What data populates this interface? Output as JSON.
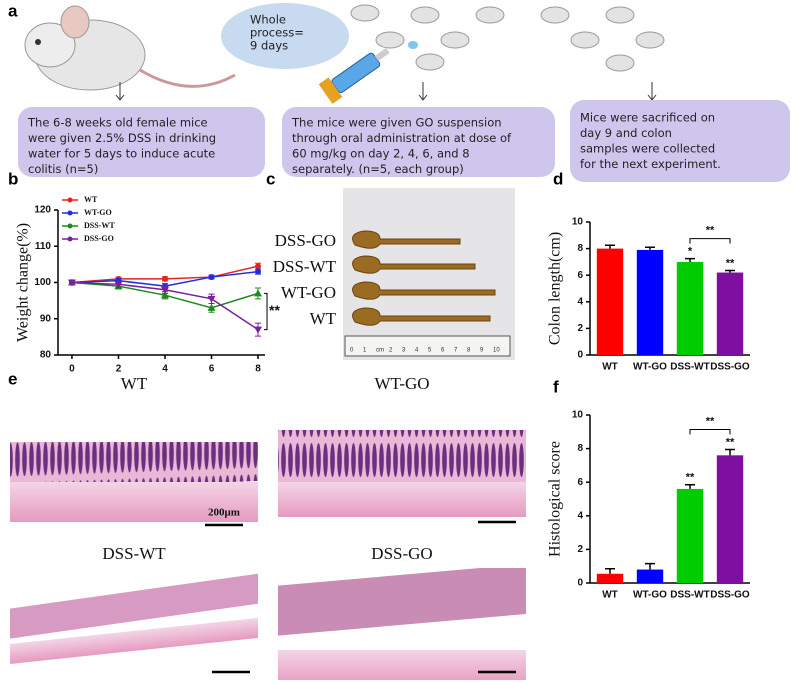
{
  "panel_letters": [
    "a",
    "b",
    "c",
    "d",
    "e",
    "f"
  ],
  "schematic": {
    "bubble": [
      "Whole",
      "process=",
      "9 days"
    ],
    "boxes": [
      [
        "The 6-8 weeks old female mice",
        "were given 2.5% DSS in drinking",
        "water for 5 days to induce acute",
        "colitis (n=5)"
      ],
      [
        "The mice were given GO suspension",
        "through oral administration at dose of",
        "60 mg/kg on day 2, 4, 6, and 8",
        "separately. (n=5, each group)"
      ],
      [
        "Mice were sacrificed on",
        "day 9 and colon",
        "samples were collected",
        "for the next experiment."
      ]
    ]
  },
  "photo": {
    "labels": [
      "DSS-GO",
      "DSS-WT",
      "WT-GO",
      "WT"
    ],
    "ruler": [
      "0",
      "1",
      "cm",
      "2",
      "3",
      "4",
      "5",
      "6",
      "7",
      "8",
      "9",
      "10"
    ]
  },
  "histology": {
    "labels": [
      "WT",
      "WT-GO",
      "DSS-WT",
      "DSS-GO"
    ],
    "scale_bar": "200μm"
  },
  "chart_data": [
    {
      "type": "line",
      "y_label": "Weight change(%)",
      "x": [
        0,
        2,
        4,
        6,
        8
      ],
      "xlim": [
        -0.6,
        8.3
      ],
      "xticks": [
        0,
        2,
        4,
        6,
        8
      ],
      "ylim": [
        80,
        120
      ],
      "yticks": [
        80,
        90,
        100,
        110,
        120
      ],
      "annotation": "**",
      "series": [
        {
          "name": "WT",
          "color": "#e8211f",
          "marker": "circle",
          "values": [
            100,
            101,
            101,
            101.5,
            104.5
          ],
          "errors": [
            0.5,
            0.5,
            0.6,
            0.5,
            0.8
          ]
        },
        {
          "name": "WT-GO",
          "color": "#1f2ee0",
          "marker": "circle",
          "values": [
            100,
            100.5,
            99,
            101.5,
            103
          ],
          "errors": [
            0.5,
            0.6,
            0.7,
            0.5,
            0.7
          ]
        },
        {
          "name": "DSS-WT",
          "color": "#1e8a1e",
          "marker": "triangle-up",
          "values": [
            100,
            99,
            96.5,
            93,
            97
          ],
          "errors": [
            0.5,
            0.8,
            1,
            1.2,
            1.5
          ]
        },
        {
          "name": "DSS-GO",
          "color": "#7a1fa0",
          "marker": "triangle-down",
          "values": [
            100,
            99.5,
            98,
            95.5,
            87
          ],
          "errors": [
            0.5,
            0.8,
            1,
            1.3,
            1.8
          ]
        }
      ]
    },
    {
      "type": "bar",
      "y_label": "Colon length(cm)",
      "categories": [
        "WT",
        "WT-GO",
        "DSS-WT",
        "DSS-GO"
      ],
      "values": [
        8.0,
        7.9,
        7.0,
        6.2
      ],
      "errors": [
        0.25,
        0.2,
        0.25,
        0.15
      ],
      "colors": [
        "#ff0000",
        "#0000ff",
        "#00cc00",
        "#7f0fa0"
      ],
      "ylim": [
        0,
        10
      ],
      "yticks": [
        0,
        2,
        4,
        6,
        8,
        10
      ],
      "marker_labels": [
        null,
        null,
        "*",
        "**"
      ],
      "comparison": {
        "label": "**",
        "categories": [
          "DSS-WT",
          "DSS-GO"
        ]
      }
    },
    {
      "type": "bar",
      "y_label": "Histological score",
      "categories": [
        "WT",
        "WT-GO",
        "DSS-WT",
        "DSS-GO"
      ],
      "values": [
        0.55,
        0.8,
        5.6,
        7.6
      ],
      "errors": [
        0.3,
        0.35,
        0.25,
        0.35
      ],
      "colors": [
        "#ff0000",
        "#0000ff",
        "#00cc00",
        "#7f0fa0"
      ],
      "ylim": [
        0,
        10
      ],
      "yticks": [
        0,
        2,
        4,
        6,
        8,
        10
      ],
      "marker_labels": [
        null,
        null,
        "**",
        "**"
      ],
      "comparison": {
        "label": "**",
        "categories": [
          "DSS-WT",
          "DSS-GO"
        ]
      }
    }
  ]
}
